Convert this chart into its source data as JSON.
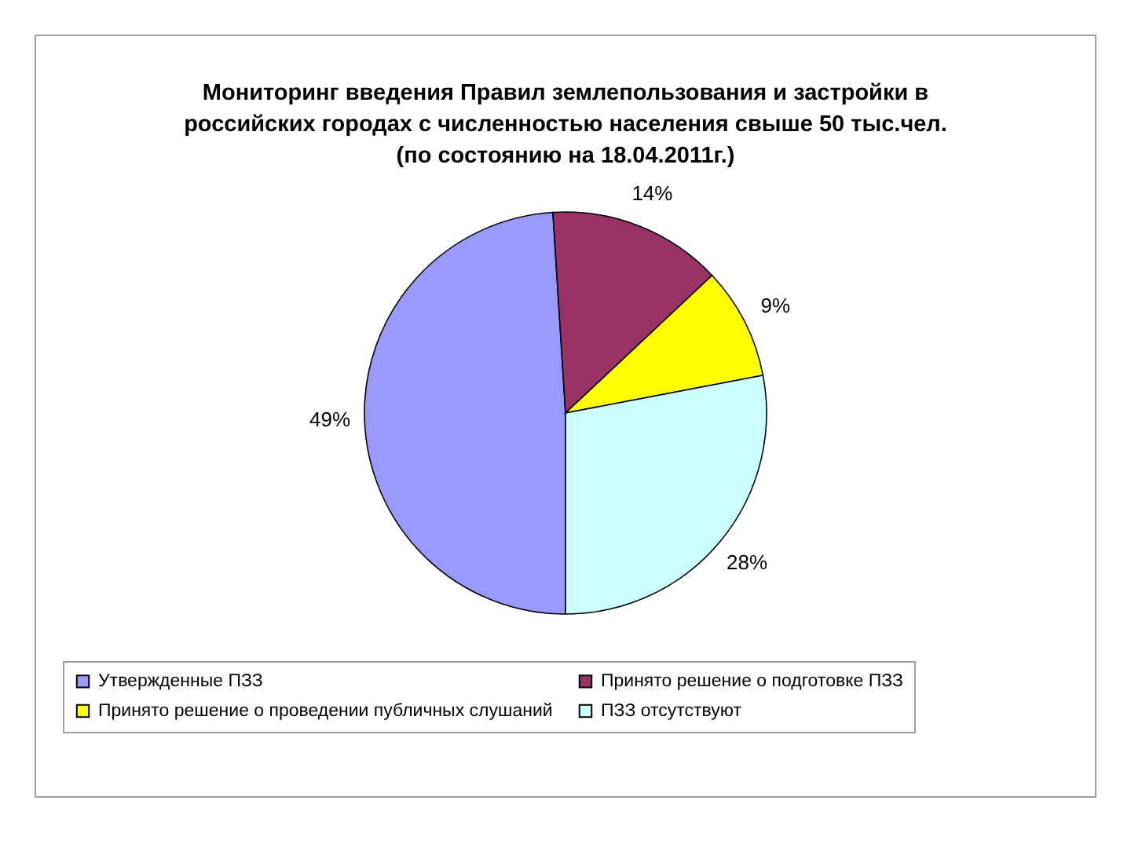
{
  "chart_data": {
    "type": "pie",
    "title": "Мониторинг введения Правил землепользования и застройки в\nроссийских городах с численностью населения свыше 50 тыс.чел.\n(по состоянию на 18.04.2011г.)",
    "categories": [
      "Утвержденные ПЗЗ",
      "Принято решение о подготовке ПЗЗ",
      "Принято решение о проведении публичных слушаний",
      "ПЗЗ отсутствуют"
    ],
    "values": [
      49,
      14,
      9,
      28
    ],
    "colors": [
      "#9999ff",
      "#993366",
      "#ffff00",
      "#ccffff"
    ],
    "value_labels": [
      "49%",
      "14%",
      "9%",
      "28%"
    ],
    "legend": "bottom"
  }
}
